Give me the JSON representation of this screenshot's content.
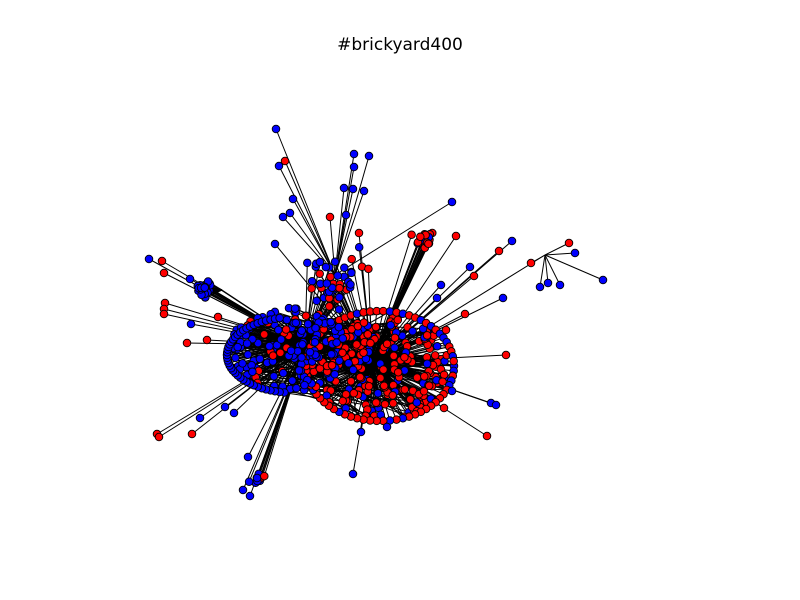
{
  "title": "#brickyard400",
  "colors": {
    "background": "#ffffff",
    "edge": "#000000",
    "node_stroke": "#000000",
    "node_blue": "#0000ff",
    "node_red": "#ff0000"
  },
  "graph": {
    "type": "network",
    "node_categories": [
      "blue",
      "red"
    ]
  }
}
